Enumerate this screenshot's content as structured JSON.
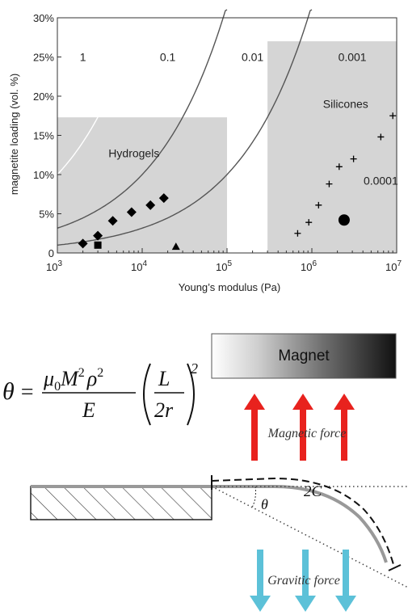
{
  "chart_data": {
    "type": "scatter",
    "title": "",
    "xlabel": "Young’s modulus (Pa)",
    "ylabel": "magnetite loading (vol. %)",
    "xscale": "log",
    "xlim": [
      1000,
      10000000
    ],
    "ylim": [
      0,
      30
    ],
    "x_ticks": [
      {
        "value": 1000,
        "base": "10",
        "exp": "3"
      },
      {
        "value": 10000,
        "base": "10",
        "exp": "4"
      },
      {
        "value": 100000,
        "base": "10",
        "exp": "5"
      },
      {
        "value": 1000000,
        "base": "10",
        "exp": "6"
      },
      {
        "value": 10000000,
        "base": "10",
        "exp": "7"
      }
    ],
    "y_ticks": [
      {
        "value": 0,
        "label": "0"
      },
      {
        "value": 5,
        "label": "5%"
      },
      {
        "value": 10,
        "label": "10%"
      },
      {
        "value": 15,
        "label": "15%"
      },
      {
        "value": 20,
        "label": "20%"
      },
      {
        "value": 25,
        "label": "25%"
      },
      {
        "value": 30,
        "label": "30%"
      }
    ],
    "regions": [
      {
        "name": "Hydrogels",
        "x": [
          1000,
          100000
        ],
        "y": [
          0,
          17.3
        ],
        "label_at": [
          8000,
          12.2
        ]
      },
      {
        "name": "Silicones",
        "x": [
          300000,
          10000000
        ],
        "y": [
          0,
          27
        ],
        "label_at": [
          2500000,
          18.5
        ]
      }
    ],
    "curves": [
      {
        "label": "1",
        "k": 1,
        "label_at": [
          2000,
          24.5
        ]
      },
      {
        "label": "0.1",
        "k": 0.1,
        "label_at": [
          20000,
          24.5
        ]
      },
      {
        "label": "0.01",
        "k": 0.01,
        "label_at": [
          200000,
          24.5
        ]
      },
      {
        "label": "0.001",
        "k": 0.001,
        "label_at": [
          3000000,
          24.5
        ]
      },
      {
        "label": "0.0001",
        "k": 0.0001,
        "label_at": [
          6500000,
          8.7
        ]
      }
    ],
    "series": [
      {
        "marker": "diamond",
        "points": [
          [
            2000,
            1.2
          ],
          [
            3000,
            2.2
          ],
          [
            4500,
            4.1
          ],
          [
            7500,
            5.2
          ],
          [
            12500,
            6.1
          ],
          [
            18000,
            7.0
          ]
        ]
      },
      {
        "marker": "square",
        "points": [
          [
            3000,
            1.0
          ]
        ]
      },
      {
        "marker": "triangle",
        "points": [
          [
            25000,
            0.6
          ]
        ]
      },
      {
        "marker": "plus",
        "points": [
          [
            680000,
            2.5
          ],
          [
            920000,
            3.9
          ],
          [
            1200000,
            6.1
          ],
          [
            1600000,
            8.8
          ],
          [
            2100000,
            11.0
          ],
          [
            3100000,
            12.0
          ],
          [
            6500000,
            14.8
          ],
          [
            9000000,
            17.5
          ]
        ]
      },
      {
        "marker": "circle",
        "points": [
          [
            2400000,
            4.2
          ]
        ]
      }
    ]
  },
  "diagram": {
    "magnet_label": "Magnet",
    "magnetic_force_label": "Magnetic force",
    "gravitic_force_label": "Gravitic force",
    "arc_label": "2C",
    "angle_label": "θ",
    "formula": {
      "lhs": "θ",
      "eq": "=",
      "mu": "μ",
      "mu_sub": "0",
      "M": "M",
      "M_sup": "2",
      "rho": "ρ",
      "rho_sup": "2",
      "den": "E",
      "L": "L",
      "twor": "2r",
      "outer_sup": "2"
    },
    "colors": {
      "magnetic_arrow": "#e8221e",
      "gravitic_arrow": "#5cc1d8",
      "beam": "#999999"
    }
  }
}
